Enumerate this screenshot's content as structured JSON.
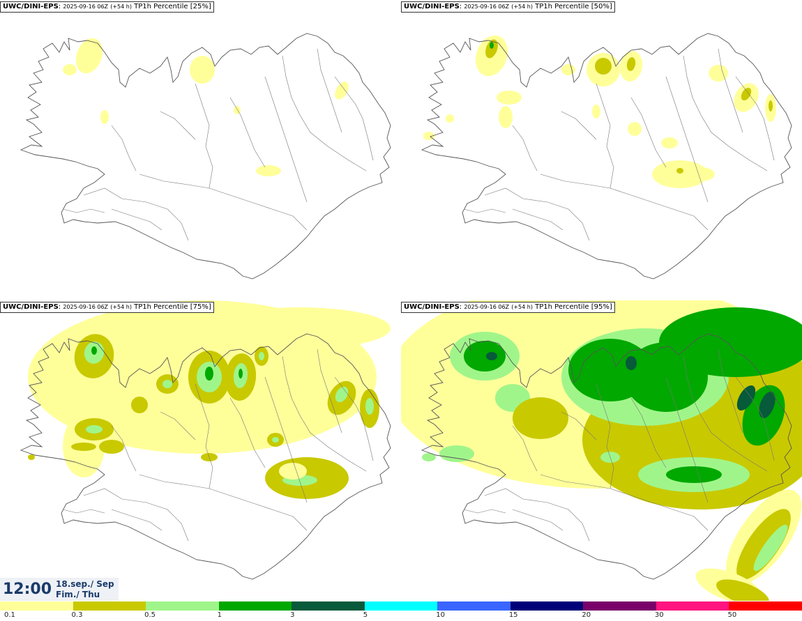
{
  "panels": [
    {
      "model": "UWC/DINI-EPS",
      "run": "2025-09-16 06Z",
      "lead": "(+54 h)",
      "param": "TP1h Percentile [25%]",
      "level": 1
    },
    {
      "model": "UWC/DINI-EPS",
      "run": "2025-09-16 06Z",
      "lead": "(+54 h)",
      "param": "TP1h Percentile [50%]",
      "level": 2
    },
    {
      "model": "UWC/DINI-EPS",
      "run": "2025-09-16 06Z",
      "lead": "(+54 h)",
      "param": "TP1h Percentile [75%]",
      "level": 3
    },
    {
      "model": "UWC/DINI-EPS",
      "run": "2025-09-16 06Z",
      "lead": "(+54 h)",
      "param": "TP1h Percentile [95%]",
      "level": 4
    }
  ],
  "time_box": {
    "time": "12:00",
    "date": "18.sep./ Sep",
    "day": "Fim./ Thu"
  },
  "legend": {
    "colors": [
      "#ffff9a",
      "#c9c900",
      "#a0f58a",
      "#00a800",
      "#075a3a",
      "#00ffff",
      "#3a66ff",
      "#000078",
      "#7a006a",
      "#ff1480",
      "#ff0000"
    ],
    "labels": [
      "0.1",
      "0.3",
      "0.5",
      "1",
      "3",
      "5",
      "10",
      "15",
      "20",
      "30",
      "50"
    ]
  }
}
